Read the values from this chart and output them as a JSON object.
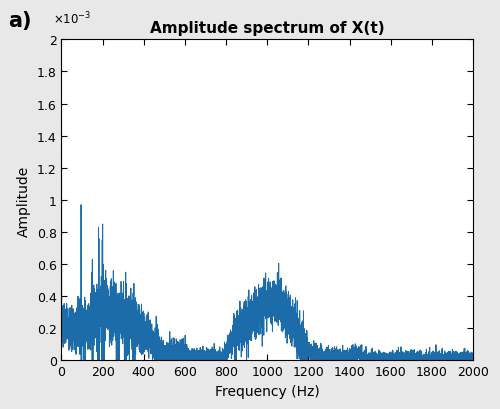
{
  "title": "Amplitude spectrum of X(t)",
  "xlabel": "Frequency (Hz)",
  "ylabel": "Amplitude",
  "panel_label": "a)",
  "xlim": [
    0,
    2000
  ],
  "ylim": [
    0,
    0.002
  ],
  "yticks": [
    0,
    0.0002,
    0.0004,
    0.0006,
    0.0008,
    0.001,
    0.0012,
    0.0014,
    0.0016,
    0.0018,
    0.002
  ],
  "ytick_labels": [
    "0",
    "0.2",
    "0.4",
    "0.6",
    "0.8",
    "1",
    "1.2",
    "1.4",
    "1.6",
    "1.8",
    "2"
  ],
  "xticks": [
    0,
    200,
    400,
    600,
    800,
    1000,
    1200,
    1400,
    1600,
    1800,
    2000
  ],
  "line_color": "#1b6ca8",
  "line_width": 0.7,
  "background_color": "#e8e8e8",
  "axes_background": "#ffffff",
  "title_fontsize": 11,
  "label_fontsize": 10,
  "tick_fontsize": 9,
  "seed": 7
}
